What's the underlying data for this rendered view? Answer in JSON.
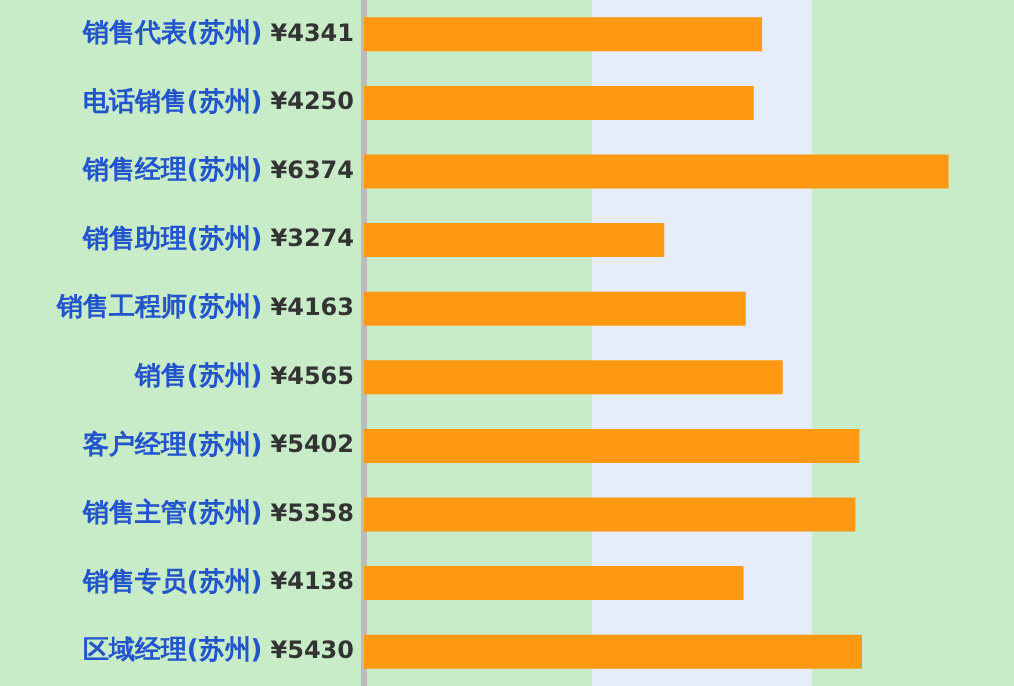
{
  "chart_data": {
    "type": "bar",
    "orientation": "horizontal",
    "categories": [
      "销售代表(苏州)",
      "电话销售(苏州)",
      "销售经理(苏州)",
      "销售助理(苏州)",
      "销售工程师(苏州)",
      "销售(苏州)",
      "客户经理(苏州)",
      "销售主管(苏州)",
      "销售专员(苏州)",
      "区域经理(苏州)"
    ],
    "values": [
      4341,
      4250,
      6374,
      3274,
      4163,
      4565,
      5402,
      5358,
      4138,
      5430
    ],
    "value_labels": [
      "¥4341",
      "¥4250",
      "¥6374",
      "¥3274",
      "¥4163",
      "¥4565",
      "¥5402",
      "¥5358",
      "¥4138",
      "¥5430"
    ],
    "color": "#ff9911",
    "grid": false,
    "legend": false,
    "tick_labels": "y"
  }
}
